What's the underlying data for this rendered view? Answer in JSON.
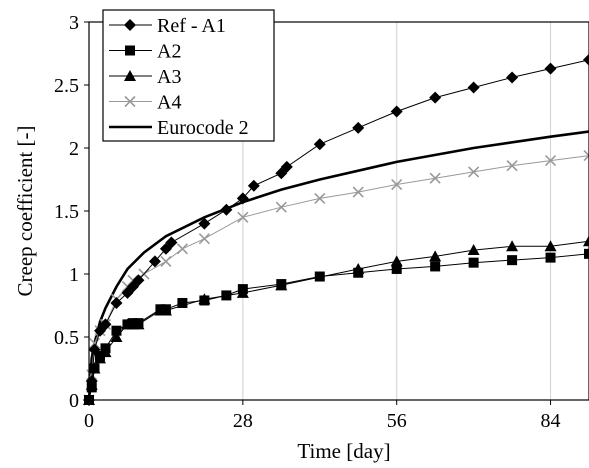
{
  "chart_data": {
    "type": "line",
    "title": "",
    "xlabel": "Time [day]",
    "ylabel": "Creep coefficient [-]",
    "xlim": [
      0,
      91
    ],
    "ylim": [
      0,
      3
    ],
    "xticks": [
      0,
      28,
      56,
      84
    ],
    "yticks": [
      0,
      0.5,
      1,
      1.5,
      2,
      2.5,
      3
    ],
    "xtick_labels": [
      "0",
      "28",
      "56",
      "84"
    ],
    "ytick_labels": [
      "0",
      "0.5",
      "1",
      "1.5",
      "2",
      "2.5",
      "3"
    ],
    "grid": "vertical",
    "legend_position": "top-left",
    "series": [
      {
        "name": "Ref - A1",
        "color": "#000000",
        "marker": "diamond",
        "x": [
          0,
          0.5,
          1,
          2,
          3,
          5,
          7,
          8,
          9,
          12,
          14,
          15,
          21,
          25,
          28,
          30,
          35,
          36,
          42,
          49,
          56,
          63,
          70,
          77,
          84,
          91
        ],
        "y": [
          0,
          0.15,
          0.4,
          0.55,
          0.6,
          0.77,
          0.85,
          0.9,
          0.95,
          1.1,
          1.2,
          1.25,
          1.4,
          1.51,
          1.6,
          1.7,
          1.8,
          1.85,
          2.03,
          2.16,
          2.29,
          2.4,
          2.48,
          2.56,
          2.63,
          2.7
        ]
      },
      {
        "name": "A2",
        "color": "#000000",
        "marker": "square",
        "x": [
          0,
          0.5,
          1,
          2,
          3,
          5,
          7,
          8,
          9,
          13,
          14,
          17,
          21,
          25,
          28,
          35,
          42,
          49,
          56,
          63,
          70,
          77,
          84,
          91
        ],
        "y": [
          0,
          0.1,
          0.25,
          0.35,
          0.41,
          0.55,
          0.6,
          0.61,
          0.61,
          0.72,
          0.72,
          0.77,
          0.79,
          0.83,
          0.88,
          0.92,
          0.98,
          1.01,
          1.04,
          1.06,
          1.09,
          1.11,
          1.13,
          1.16
        ]
      },
      {
        "name": "A3",
        "color": "#000000",
        "marker": "triangle",
        "x": [
          0,
          0.5,
          1,
          2,
          3,
          5,
          7,
          8,
          9,
          13,
          14,
          21,
          28,
          35,
          49,
          56,
          63,
          70,
          77,
          84,
          91
        ],
        "y": [
          0,
          0.12,
          0.25,
          0.33,
          0.38,
          0.5,
          0.6,
          0.6,
          0.6,
          0.71,
          0.71,
          0.8,
          0.85,
          0.91,
          1.04,
          1.1,
          1.14,
          1.19,
          1.22,
          1.22,
          1.26
        ]
      },
      {
        "name": "A4",
        "color": "#999999",
        "marker": "cross",
        "x": [
          0,
          0.5,
          1,
          2,
          3,
          5,
          7,
          8,
          10,
          14,
          17,
          21,
          28,
          35,
          42,
          49,
          56,
          63,
          70,
          77,
          84,
          91
        ],
        "y": [
          0,
          0.2,
          0.45,
          0.55,
          0.6,
          0.8,
          0.9,
          0.95,
          1.0,
          1.1,
          1.2,
          1.28,
          1.45,
          1.53,
          1.6,
          1.65,
          1.71,
          1.76,
          1.81,
          1.86,
          1.9,
          1.94
        ]
      },
      {
        "name": "Eurocode 2",
        "color": "#000000",
        "marker": "none",
        "x": [
          0,
          0.5,
          1,
          2,
          3,
          5,
          7,
          10,
          14,
          21,
          28,
          35,
          42,
          56,
          70,
          84,
          91
        ],
        "y": [
          0,
          0.33,
          0.45,
          0.62,
          0.73,
          0.9,
          1.04,
          1.17,
          1.3,
          1.45,
          1.57,
          1.67,
          1.75,
          1.89,
          2.0,
          2.09,
          2.13
        ]
      }
    ]
  }
}
